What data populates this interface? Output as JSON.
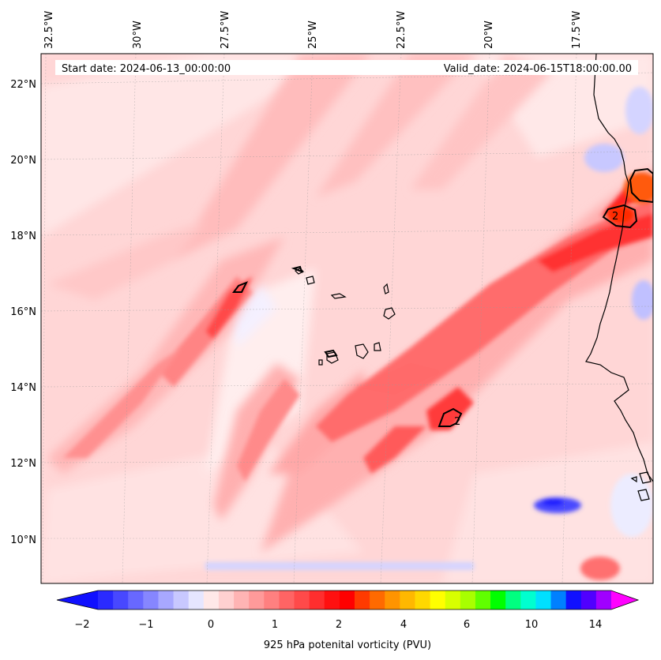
{
  "header": {
    "start_date": "Start date: 2024-06-13_00:00:00",
    "valid_date": "Valid_date: 2024-06-15T18:00:00.00"
  },
  "map": {
    "lon_labels": [
      "32.5°W",
      "30°W",
      "27.5°W",
      "25°W",
      "22.5°W",
      "20°W",
      "17.5°W"
    ],
    "lat_labels": [
      "22°N",
      "20°N",
      "18°N",
      "16°N",
      "14°N",
      "12°N",
      "10°N"
    ],
    "contour_label": "2"
  },
  "colorbar": {
    "label": "925 hPa potenital vorticity (PVU)",
    "ticks": [
      "−2",
      "−1",
      "0",
      "1",
      "2",
      "4",
      "6",
      "10",
      "14"
    ],
    "colors": [
      "#1010ff",
      "#2a2aff",
      "#4848ff",
      "#6868ff",
      "#8686ff",
      "#a8a8ff",
      "#c8c8ff",
      "#e6e6ff",
      "#ffe8e8",
      "#ffd0d0",
      "#ffb4b4",
      "#ff9a9a",
      "#ff8080",
      "#ff6464",
      "#ff4a4a",
      "#ff2e2e",
      "#ff1010",
      "#ff0000",
      "#ff3a00",
      "#ff6a00",
      "#ff9400",
      "#ffb800",
      "#ffd800",
      "#ffff00",
      "#d8ff00",
      "#a8ff00",
      "#60ff00",
      "#00ff00",
      "#00ff80",
      "#00ffd0",
      "#00e0ff",
      "#0080ff",
      "#1010ff",
      "#5000ff",
      "#a000ff",
      "#ff00ff"
    ]
  }
}
